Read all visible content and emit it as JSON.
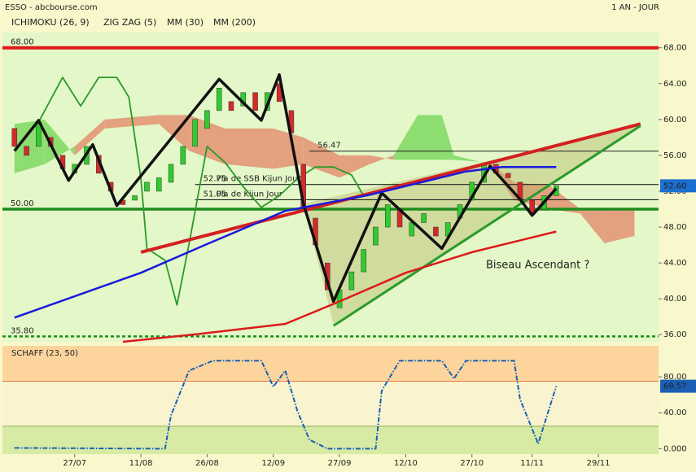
{
  "header": {
    "source": "ESSO - abcbourse.com",
    "period": "1 AN - JOUR"
  },
  "chart_data": [
    {
      "type": "candlestick",
      "xlim": [
        -1,
        108
      ],
      "ylim": [
        35.2,
        69.7
      ],
      "yticks": [
        {
          "value": 36,
          "label": "36.00"
        },
        {
          "value": 40,
          "label": "40.00"
        },
        {
          "value": 44,
          "label": "44.00"
        },
        {
          "value": 48,
          "label": "48.00"
        },
        {
          "value": 52,
          "label": "52.00"
        },
        {
          "value": 56,
          "label": "56.00"
        },
        {
          "value": 60,
          "label": "60.00"
        },
        {
          "value": 64,
          "label": "64.00"
        },
        {
          "value": 68,
          "label": "68.00"
        }
      ],
      "background": "#e4f7c8",
      "candles": {
        "up_color": "#2ecc2e",
        "down_color": "#d42a2a",
        "x": [
          1,
          3,
          5,
          7,
          9,
          11,
          13,
          15,
          17,
          19,
          21,
          23,
          25,
          27,
          29,
          31,
          33,
          35,
          37,
          39,
          41,
          43,
          45,
          47,
          49,
          51,
          53,
          55,
          57,
          59,
          61,
          63,
          65,
          67,
          69,
          71,
          73,
          75,
          77,
          79,
          81,
          83,
          85,
          87,
          89,
          91
        ],
        "open": [
          59,
          57,
          57,
          58,
          56,
          54,
          55,
          56,
          53,
          51,
          51,
          52,
          52,
          53,
          55,
          57,
          59,
          61,
          62,
          61.5,
          63,
          61,
          64,
          61,
          55,
          49,
          44,
          39,
          41,
          43,
          46,
          48,
          50,
          47,
          48.5,
          48,
          47,
          49,
          51,
          53,
          55,
          54,
          53,
          51,
          50,
          51.5
        ],
        "close": [
          57,
          56,
          59.5,
          57,
          54.5,
          55,
          57,
          54,
          52,
          50.5,
          51.5,
          53,
          53.5,
          55,
          57,
          60,
          61,
          63.5,
          61,
          63,
          61,
          63,
          62,
          58.5,
          50,
          46,
          41,
          41,
          43,
          45.5,
          48,
          50.5,
          48,
          48.5,
          49.5,
          47,
          48.5,
          50.5,
          53,
          55,
          54,
          53.5,
          51,
          49.5,
          51.5,
          52.6
        ]
      },
      "current": {
        "value": 52.6,
        "label": "52.60",
        "color": "#1a6fd0"
      },
      "ichimoku": {
        "name": "ICHIMOKU (26, 9)",
        "chikou": {
          "color": "#2a9a2a",
          "x": [
            1,
            5,
            9,
            12,
            15,
            18,
            20,
            22,
            23,
            26,
            28,
            30,
            33,
            36,
            39,
            42,
            45,
            48,
            51,
            54,
            57,
            59
          ],
          "values": [
            56.5,
            59.7,
            64.7,
            61.5,
            64.7,
            64.7,
            62.5,
            53.4,
            45.6,
            44.3,
            39.3,
            46.1,
            57,
            55.2,
            52.5,
            50.2,
            51.5,
            53.4,
            54.7,
            54.7,
            53.8,
            51.5
          ]
        },
        "cloud": {
          "up_color": "#7ed860",
          "down_color": "#e39272",
          "x": [
            1,
            6,
            11,
            16,
            25,
            30,
            36,
            44,
            49,
            55,
            60,
            64,
            68,
            72,
            74,
            80,
            84,
            90,
            95,
            99,
            104
          ],
          "span_a": [
            59.5,
            60,
            56,
            59,
            59.5,
            56.5,
            55,
            54.5,
            55,
            53.5,
            55,
            56,
            60.5,
            60.5,
            56,
            55,
            51,
            50,
            49.5,
            46.2,
            47
          ],
          "span_b": [
            54,
            55,
            57,
            60,
            60.5,
            60.5,
            59,
            59,
            58,
            56,
            56,
            55.5,
            55.5,
            55.5,
            55.5,
            55.2,
            53,
            52.6,
            50,
            50,
            50
          ]
        }
      },
      "series": [
        {
          "name": "ZIG ZAG (5)",
          "color": "#111111",
          "width": 3.5,
          "x": [
            1,
            5,
            10,
            14,
            18,
            35,
            42,
            45,
            49,
            54,
            62,
            72,
            80,
            85,
            87,
            91
          ],
          "values": [
            56.5,
            59.9,
            53.2,
            57.2,
            50.4,
            64.5,
            59.9,
            65,
            50.6,
            39.7,
            51.8,
            45.6,
            54.8,
            51.1,
            49.3,
            52.3
          ]
        },
        {
          "name": "MM (30)",
          "color": "#1a1adc",
          "width": 2.5,
          "x": [
            1,
            22,
            33,
            46,
            60,
            76,
            82,
            91
          ],
          "values": [
            37.9,
            42.9,
            46.1,
            49.8,
            51.6,
            54.2,
            54.7,
            54.7
          ]
        },
        {
          "name": "MM (200)",
          "color": "#dc1a1a",
          "width": 2.5,
          "x": [
            19,
            32,
            46,
            55,
            66,
            77,
            91
          ],
          "values": [
            35.2,
            36.1,
            37.2,
            39.7,
            42.9,
            45.2,
            47.5
          ]
        }
      ],
      "trendlines": [
        {
          "color": "#d42020",
          "width": 4,
          "x": [
            22,
            105
          ],
          "values": [
            45.2,
            59.5
          ]
        },
        {
          "color": "#2a9a2a",
          "width": 3,
          "x": [
            54,
            105
          ],
          "values": [
            37,
            59.3
          ]
        }
      ],
      "wedge": {
        "color": "#b7b76a",
        "x": [
          49,
          54,
          105
        ],
        "values": [
          50.6,
          37.2,
          59.3
        ]
      },
      "levels": [
        {
          "value": 68,
          "label": "68.00",
          "color": "#e01818",
          "width": 4,
          "x_start": -1
        },
        {
          "value": 50,
          "label": "50.00",
          "color": "#1e8c1e",
          "width": 3.5,
          "x_start": -1
        },
        {
          "value": 35.8,
          "label": "35.80",
          "color": "#1e8c1e",
          "width": 2.5,
          "dashed": true,
          "x_start": -1
        },
        {
          "value": 56.47,
          "label": "56.47",
          "color": "#222222",
          "width": 1,
          "x_start": 50
        },
        {
          "value": 52.75,
          "label": "52.75",
          "text": "Pla de SSB Kijun Jour",
          "color": "#222222",
          "width": 1.2,
          "x_start": 31
        },
        {
          "value": 51.05,
          "label": "51.05",
          "text": "Pla de Kijun Jour",
          "color": "#222222",
          "width": 1.2,
          "x_start": 31
        }
      ],
      "annotation": "Biseau Ascendant ?"
    },
    {
      "type": "line",
      "title": "SCHAFF (23, 50)",
      "xlim": [
        -1,
        108
      ],
      "ylim": [
        -6,
        114.5
      ],
      "yticks": [
        {
          "value": 0,
          "label": "0.000"
        },
        {
          "value": 40,
          "label": "40.00"
        },
        {
          "value": 80,
          "label": "80.00"
        }
      ],
      "bands": [
        {
          "from": 75,
          "to": 114.5,
          "color": "#fcd49c"
        },
        {
          "from": -6,
          "to": 25,
          "color": "#d8eba4"
        }
      ],
      "background": "#f9f3cf",
      "color": "#1a5fb4",
      "x": [
        1,
        26,
        27,
        30,
        34,
        42,
        44,
        46,
        48,
        50,
        53,
        61,
        62,
        65,
        72,
        74,
        76,
        84,
        85,
        88,
        91
      ],
      "values": [
        0.9,
        0,
        37,
        87,
        98,
        98,
        69,
        87,
        42,
        10,
        0,
        0,
        64.5,
        98,
        98,
        78,
        98,
        98,
        55,
        5.5,
        69.57
      ],
      "xticks": [
        {
          "value": 11,
          "label": "27/07"
        },
        {
          "value": 22,
          "label": "11/08"
        },
        {
          "value": 33,
          "label": "26/08"
        },
        {
          "value": 44,
          "label": "12/09"
        },
        {
          "value": 55,
          "label": "27/09"
        },
        {
          "value": 66,
          "label": "12/10"
        },
        {
          "value": 77,
          "label": "27/10"
        },
        {
          "value": 87,
          "label": "11/11"
        },
        {
          "value": 98,
          "label": "29/11"
        }
      ]
    }
  ]
}
